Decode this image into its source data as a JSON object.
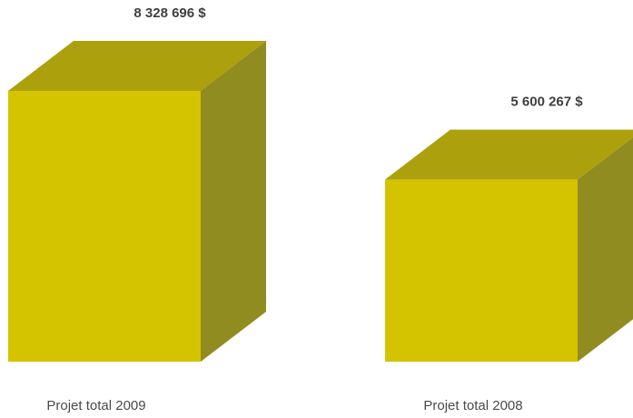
{
  "chart_data": {
    "type": "bar",
    "categories": [
      "Projet total 2009",
      "Projet total 2008"
    ],
    "values": [
      8328696,
      5600267
    ],
    "value_labels": [
      "8 328 696 $",
      "5 600 267 $"
    ],
    "ylim": [
      0,
      8328696
    ],
    "grid": false,
    "legend": "none",
    "colors": {
      "front": "#d4c400",
      "top": "#aca10d",
      "side": "#918c1f"
    }
  }
}
